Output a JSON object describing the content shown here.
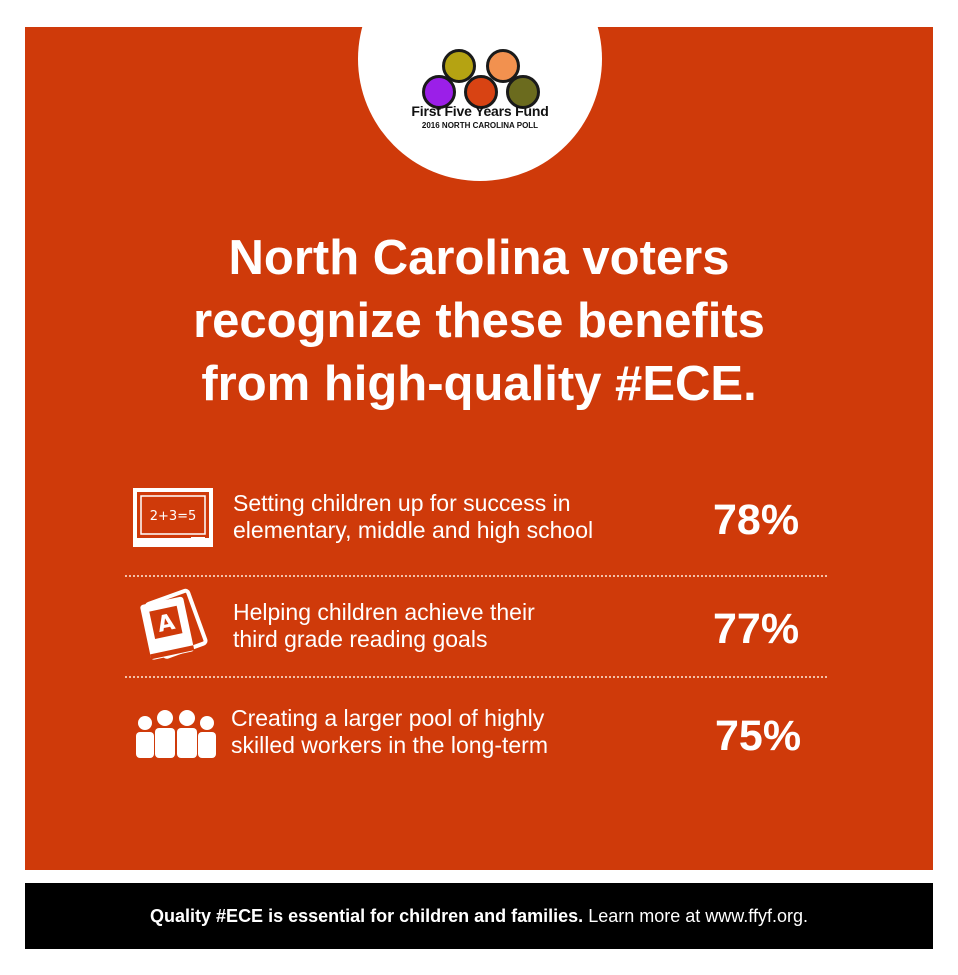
{
  "logo": {
    "name": "First Five Years Fund",
    "subtitle": "2016 NORTH CAROLINA POLL",
    "dot_colors": [
      "#b5a312",
      "#f2914f",
      "#9b1fe8",
      "#d84313",
      "#6b6b1e"
    ]
  },
  "headline": {
    "line1": "North Carolina voters",
    "line2": "recognize these benefits",
    "line3": "from high-quality #ECE."
  },
  "benefits": [
    {
      "icon": "chalkboard-icon",
      "chalk_text": "2+3=5",
      "line1": "Setting children up for success in",
      "line2": "elementary, middle and high school",
      "percent": "78%",
      "percent_value": 78
    },
    {
      "icon": "books-icon",
      "book_letter": "A",
      "line1": "Helping children achieve their",
      "line2": "third grade reading goals",
      "percent": "77%",
      "percent_value": 77
    },
    {
      "icon": "people-group-icon",
      "line1": "Creating a larger pool of highly",
      "line2": "skilled workers in the long-term",
      "percent": "75%",
      "percent_value": 75
    }
  ],
  "footer": {
    "bold": "Quality #ECE is essential for children and families.",
    "regular": "Learn more at www.ffyf.org."
  },
  "colors": {
    "panel": "#cf3a0a",
    "footer": "#000000",
    "text": "#ffffff"
  }
}
